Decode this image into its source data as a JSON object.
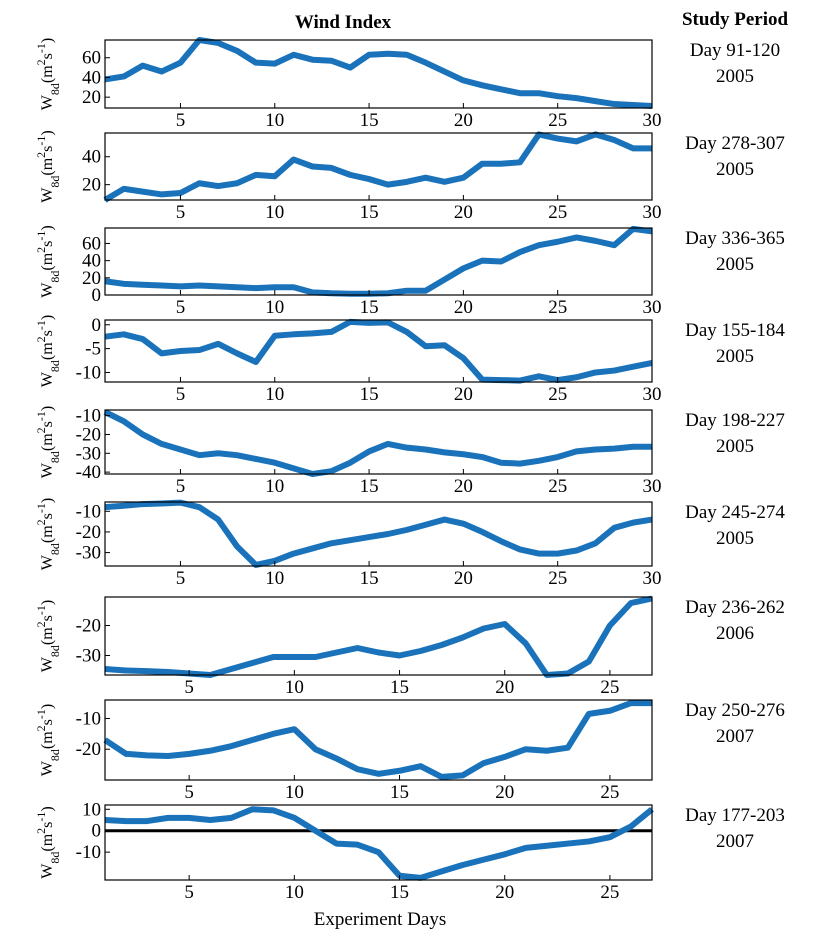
{
  "title": "Wind Index",
  "header": "Study Period",
  "xlabel": "Experiment Days",
  "ylabel": [
    "W",
    "8d",
    "(m",
    "2",
    "s",
    "-1",
    ")"
  ],
  "chart_data": [
    {
      "type": "line",
      "period": "Day 91-120",
      "year": "2005",
      "color": "#1a73ba",
      "x": [
        1,
        2,
        3,
        4,
        5,
        6,
        7,
        8,
        9,
        10,
        11,
        12,
        13,
        14,
        15,
        16,
        17,
        18,
        19,
        20,
        21,
        22,
        23,
        24,
        25,
        26,
        27,
        28,
        29,
        30
      ],
      "values": [
        38,
        41,
        52,
        46,
        55,
        78,
        75,
        67,
        55,
        54,
        63,
        58,
        57,
        50,
        63,
        64,
        63,
        55,
        46,
        37,
        32,
        28,
        24,
        24,
        21,
        19,
        16,
        13,
        12,
        11
      ],
      "xlim": [
        1,
        30
      ],
      "xticks": [
        5,
        10,
        15,
        20,
        25,
        30
      ],
      "ylim": [
        9,
        78
      ],
      "yticks": [
        20,
        40,
        60
      ]
    },
    {
      "type": "line",
      "period": "Day 278-307",
      "year": "2005",
      "color": "#1a73ba",
      "x": [
        1,
        2,
        3,
        4,
        5,
        6,
        7,
        8,
        9,
        10,
        11,
        12,
        13,
        14,
        15,
        16,
        17,
        18,
        19,
        20,
        21,
        22,
        23,
        24,
        25,
        26,
        27,
        28,
        29,
        30
      ],
      "values": [
        9,
        17,
        15,
        13,
        14,
        21,
        19,
        21,
        27,
        26,
        38,
        33,
        32,
        27,
        24,
        20,
        22,
        25,
        22,
        25,
        35,
        35,
        36,
        56,
        53,
        51,
        56,
        52,
        46,
        46
      ],
      "xlim": [
        1,
        30
      ],
      "xticks": [
        5,
        10,
        15,
        20,
        25,
        30
      ],
      "ylim": [
        9,
        57
      ],
      "yticks": [
        20,
        40
      ]
    },
    {
      "type": "line",
      "period": "Day 336-365",
      "year": "2005",
      "color": "#1a73ba",
      "x": [
        1,
        2,
        3,
        4,
        5,
        6,
        7,
        8,
        9,
        10,
        11,
        12,
        13,
        14,
        15,
        16,
        17,
        18,
        19,
        20,
        21,
        22,
        23,
        24,
        25,
        26,
        27,
        28,
        29,
        30
      ],
      "values": [
        16,
        13,
        12,
        11,
        10,
        11,
        10,
        9,
        8,
        9,
        9,
        3,
        2,
        1.5,
        1.5,
        2,
        5,
        5,
        18,
        31,
        40,
        39,
        50,
        58,
        62,
        67,
        63,
        58,
        77,
        74
      ],
      "xlim": [
        1,
        30
      ],
      "xticks": [
        5,
        10,
        15,
        20,
        25,
        30
      ],
      "ylim": [
        0,
        78
      ],
      "yticks": [
        0,
        20,
        40,
        60
      ]
    },
    {
      "type": "line",
      "period": "Day 155-184",
      "year": "2005",
      "color": "#1a73ba",
      "x": [
        1,
        2,
        3,
        4,
        5,
        6,
        7,
        8,
        9,
        10,
        11,
        12,
        13,
        14,
        15,
        16,
        17,
        18,
        19,
        20,
        21,
        22,
        23,
        24,
        25,
        26,
        27,
        28,
        29,
        30
      ],
      "values": [
        -2.5,
        -2,
        -3,
        -6,
        -5.5,
        -5.3,
        -4,
        -6,
        -7.8,
        -2.3,
        -2,
        -1.8,
        -1.5,
        0.6,
        0.4,
        0.5,
        -1.5,
        -4.5,
        -4.3,
        -7,
        -11.5,
        -11.6,
        -11.7,
        -10.8,
        -11.6,
        -11,
        -10,
        -9.6,
        -8.8,
        -8
      ],
      "xlim": [
        1,
        30
      ],
      "xticks": [
        5,
        10,
        15,
        20,
        25,
        30
      ],
      "ylim": [
        -12,
        1
      ],
      "yticks": [
        -10,
        -5,
        0
      ]
    },
    {
      "type": "line",
      "period": "Day 198-227",
      "year": "2005",
      "color": "#1a73ba",
      "x": [
        1,
        2,
        3,
        4,
        5,
        6,
        7,
        8,
        9,
        10,
        11,
        12,
        13,
        14,
        15,
        16,
        17,
        18,
        19,
        20,
        21,
        22,
        23,
        24,
        25,
        26,
        27,
        28,
        29,
        30
      ],
      "values": [
        -8,
        -13,
        -20,
        -25,
        -28,
        -31,
        -30,
        -31,
        -33,
        -35,
        -38,
        -41,
        -39.5,
        -35,
        -29,
        -25,
        -27,
        -28,
        -29.5,
        -30.5,
        -32,
        -35,
        -35.5,
        -34,
        -32,
        -29,
        -28,
        -27.5,
        -26.5,
        -26.5
      ],
      "xlim": [
        1,
        30
      ],
      "xticks": [
        5,
        10,
        15,
        20,
        25,
        30
      ],
      "ylim": [
        -41,
        -7
      ],
      "yticks": [
        -40,
        -30,
        -20,
        -10
      ]
    },
    {
      "type": "line",
      "period": "Day 245-274",
      "year": "2005",
      "color": "#1a73ba",
      "x": [
        1,
        2,
        3,
        4,
        5,
        6,
        7,
        8,
        9,
        10,
        11,
        12,
        13,
        14,
        15,
        16,
        17,
        18,
        19,
        20,
        21,
        22,
        23,
        24,
        25,
        26,
        27,
        28,
        29,
        30
      ],
      "values": [
        -8,
        -7.3,
        -6.5,
        -6.2,
        -5.8,
        -8,
        -14,
        -27,
        -36,
        -34,
        -30.5,
        -28,
        -25.5,
        -24,
        -22.5,
        -21,
        -19,
        -16.5,
        -14,
        -16,
        -20,
        -24.5,
        -28.5,
        -30.5,
        -30.5,
        -29,
        -25.5,
        -18,
        -15.5,
        -14
      ],
      "xlim": [
        1,
        30
      ],
      "xticks": [
        5,
        10,
        15,
        20,
        25,
        30
      ],
      "ylim": [
        -36.5,
        -5.5
      ],
      "yticks": [
        -30,
        -20,
        -10
      ]
    },
    {
      "type": "line",
      "period": "Day 236-262",
      "year": "2006",
      "color": "#1a73ba",
      "x": [
        1,
        2,
        3,
        4,
        5,
        6,
        7,
        8,
        9,
        10,
        11,
        12,
        13,
        14,
        15,
        16,
        17,
        18,
        19,
        20,
        21,
        22,
        23,
        24,
        25,
        26,
        27
      ],
      "values": [
        -34.5,
        -35,
        -35.2,
        -35.5,
        -36,
        -36.5,
        -34.5,
        -32.5,
        -30.5,
        -30.5,
        -30.5,
        -29,
        -27.5,
        -29,
        -30,
        -28.5,
        -26.5,
        -24,
        -21,
        -19.5,
        -26,
        -36.5,
        -36,
        -32,
        -20,
        -12.5,
        -11
      ],
      "xlim": [
        1,
        27
      ],
      "xticks": [
        5,
        10,
        15,
        20,
        25
      ],
      "ylim": [
        -36.5,
        -10.5
      ],
      "yticks": [
        -30,
        -20
      ]
    },
    {
      "type": "line",
      "period": "Day 250-276",
      "year": "2007",
      "color": "#1a73ba",
      "x": [
        1,
        2,
        3,
        4,
        5,
        6,
        7,
        8,
        9,
        10,
        11,
        12,
        13,
        14,
        15,
        16,
        17,
        18,
        19,
        20,
        21,
        22,
        23,
        24,
        25,
        26,
        27
      ],
      "values": [
        -17,
        -21.5,
        -22,
        -22.2,
        -21.5,
        -20.5,
        -19,
        -17,
        -15,
        -13.5,
        -20,
        -23,
        -26.5,
        -28,
        -27,
        -25.5,
        -29,
        -28.5,
        -24.5,
        -22.5,
        -20,
        -20.5,
        -19.5,
        -8.5,
        -7.5,
        -5,
        -5
      ],
      "xlim": [
        1,
        27
      ],
      "xticks": [
        5,
        10,
        15,
        20,
        25
      ],
      "ylim": [
        -30,
        -4
      ],
      "yticks": [
        -20,
        -10
      ]
    },
    {
      "type": "line",
      "period": "Day 177-203",
      "year": "2007",
      "color": "#1a73ba",
      "x": [
        1,
        2,
        3,
        4,
        5,
        6,
        7,
        8,
        9,
        10,
        11,
        12,
        13,
        14,
        15,
        16,
        17,
        18,
        19,
        20,
        21,
        22,
        23,
        24,
        25,
        26,
        27
      ],
      "values": [
        5,
        4.5,
        4.5,
        6,
        6,
        5,
        6,
        10,
        9.5,
        6,
        0,
        -6,
        -6.5,
        -10,
        -21,
        -22,
        -19,
        -16,
        -13.5,
        -11,
        -8,
        -7,
        -6,
        -5,
        -3,
        2,
        10
      ],
      "xlim": [
        1,
        27
      ],
      "xticks": [
        5,
        10,
        15,
        20,
        25
      ],
      "ylim": [
        -23,
        12
      ],
      "yticks": [
        -10,
        0,
        10
      ],
      "reference_line": 0
    }
  ]
}
